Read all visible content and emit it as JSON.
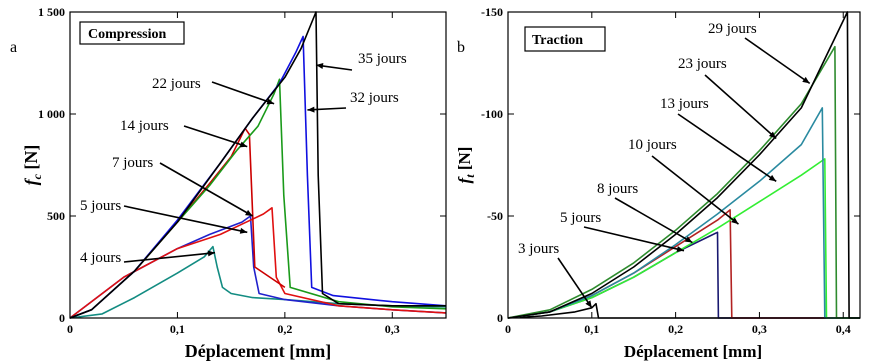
{
  "chart_data": [
    {
      "type": "line",
      "panel_letter": "a",
      "title": "Compression",
      "xlabel": "Déplacement [mm]",
      "ylabel": "f",
      "ylabel_sub": "c",
      "ylabel_unit": " [N]",
      "xlim": [
        0,
        0.35
      ],
      "ylim": [
        0,
        1500
      ],
      "x_ticks": [
        0,
        0.1,
        0.2,
        0.3
      ],
      "x_tick_labels": [
        "0",
        "0,1",
        "0,2",
        "0,3"
      ],
      "y_ticks": [
        0,
        500,
        1000,
        1500
      ],
      "y_tick_labels": [
        "0",
        "500",
        "1 000",
        "1 500"
      ],
      "series": [
        {
          "name": "4 jours",
          "color": "#138c82",
          "x": [
            0,
            0.03,
            0.06,
            0.1,
            0.125,
            0.133,
            0.137,
            0.142,
            0.15,
            0.17,
            0.2,
            0.25,
            0.3,
            0.35
          ],
          "y": [
            0,
            20,
            100,
            220,
            300,
            350,
            250,
            150,
            120,
            100,
            90,
            70,
            60,
            55
          ]
        },
        {
          "name": "5 jours",
          "color": "#2020cc",
          "x": [
            0,
            0.05,
            0.1,
            0.13,
            0.16,
            0.168,
            0.171,
            0.176,
            0.2,
            0.25,
            0.3,
            0.35
          ],
          "y": [
            0,
            200,
            340,
            410,
            470,
            500,
            250,
            120,
            90,
            60,
            40,
            25
          ]
        },
        {
          "name": "7 jours",
          "color": "#e01010",
          "x": [
            0,
            0.05,
            0.1,
            0.14,
            0.16,
            0.18,
            0.188,
            0.192,
            0.2,
            0.25,
            0.3,
            0.35
          ],
          "y": [
            0,
            200,
            340,
            410,
            460,
            510,
            540,
            200,
            120,
            60,
            40,
            25
          ]
        },
        {
          "name": "14 jours",
          "color": "#cc0000",
          "x": [
            0,
            0.02,
            0.06,
            0.1,
            0.13,
            0.15,
            0.163,
            0.167,
            0.172,
            0.2
          ],
          "y": [
            0,
            40,
            230,
            470,
            660,
            790,
            930,
            900,
            250,
            150
          ]
        },
        {
          "name": "22 jours",
          "color": "#1a9a1a",
          "x": [
            0,
            0.02,
            0.06,
            0.1,
            0.13,
            0.155,
            0.175,
            0.19,
            0.195,
            0.199,
            0.205,
            0.25,
            0.3,
            0.35
          ],
          "y": [
            0,
            40,
            230,
            470,
            650,
            820,
            940,
            1100,
            1170,
            600,
            150,
            80,
            55,
            45
          ]
        },
        {
          "name": "32 jours",
          "color": "#1010e0",
          "x": [
            0,
            0.02,
            0.06,
            0.1,
            0.14,
            0.17,
            0.195,
            0.21,
            0.217,
            0.221,
            0.225,
            0.245,
            0.3,
            0.35
          ],
          "y": [
            0,
            40,
            230,
            480,
            760,
            980,
            1150,
            1300,
            1380,
            700,
            150,
            110,
            80,
            60
          ]
        },
        {
          "name": "35 jours",
          "color": "#000000",
          "x": [
            0,
            0.02,
            0.06,
            0.1,
            0.14,
            0.17,
            0.2,
            0.215,
            0.229,
            0.231,
            0.235,
            0.25,
            0.3,
            0.35
          ],
          "y": [
            0,
            40,
            230,
            470,
            760,
            980,
            1180,
            1320,
            1500,
            700,
            120,
            70,
            60,
            60
          ]
        }
      ],
      "annotations": [
        {
          "text": "35 jours",
          "series": "35 jours"
        },
        {
          "text": "32 jours",
          "series": "32 jours"
        },
        {
          "text": "22 jours",
          "series": "22 jours"
        },
        {
          "text": "14 jours",
          "series": "14 jours"
        },
        {
          "text": "7 jours",
          "series": "7 jours"
        },
        {
          "text": "5 jours",
          "series": "5 jours"
        },
        {
          "text": "4 jours",
          "series": "4 jours"
        }
      ]
    },
    {
      "type": "line",
      "panel_letter": "b",
      "title": "Traction",
      "xlabel": "Déplacement [mm]",
      "ylabel": "f",
      "ylabel_sub": "t",
      "ylabel_unit": " [N]",
      "xlim": [
        0,
        0.42
      ],
      "ylim": [
        0,
        -150
      ],
      "x_ticks": [
        0,
        0.1,
        0.2,
        0.3,
        0.4
      ],
      "x_tick_labels": [
        "0",
        "0,1",
        "0,2",
        "0,3",
        "0,4"
      ],
      "y_ticks": [
        0,
        -50,
        -100,
        -150
      ],
      "y_tick_labels": [
        "0",
        "-50",
        "-100",
        "-150"
      ],
      "series": [
        {
          "name": "3 jours",
          "color": "#000000",
          "x": [
            0,
            0.04,
            0.08,
            0.1,
            0.105,
            0.108,
            0.2,
            0.3,
            0.42
          ],
          "y": [
            0,
            -1,
            -3,
            -5,
            -7,
            0,
            0,
            0,
            0
          ]
        },
        {
          "name": "5 jours",
          "color": "#191970",
          "x": [
            0,
            0.05,
            0.1,
            0.15,
            0.2,
            0.24,
            0.25,
            0.251,
            0.3,
            0.42
          ],
          "y": [
            0,
            -3,
            -10,
            -20,
            -32,
            -40,
            -42,
            0,
            0,
            0
          ]
        },
        {
          "name": "8 jours",
          "color": "#b22222",
          "x": [
            0,
            0.05,
            0.1,
            0.15,
            0.2,
            0.25,
            0.265,
            0.267,
            0.3,
            0.42
          ],
          "y": [
            0,
            -3,
            -11,
            -22,
            -35,
            -48,
            -53,
            0,
            0,
            0
          ]
        },
        {
          "name": "10 jours",
          "color": "#33ee33",
          "x": [
            0,
            0.05,
            0.1,
            0.15,
            0.2,
            0.25,
            0.3,
            0.35,
            0.378,
            0.38,
            0.4,
            0.42
          ],
          "y": [
            0,
            -3,
            -10,
            -20,
            -32,
            -44,
            -57,
            -70,
            -78,
            0,
            0,
            0
          ]
        },
        {
          "name": "13 jours",
          "color": "#2a8aa0",
          "x": [
            0,
            0.05,
            0.1,
            0.15,
            0.2,
            0.25,
            0.3,
            0.35,
            0.375,
            0.378,
            0.4,
            0.42
          ],
          "y": [
            0,
            -3,
            -11,
            -22,
            -36,
            -51,
            -67,
            -85,
            -103,
            0,
            0,
            0
          ]
        },
        {
          "name": "23 jours",
          "color": "#2e8b2e",
          "x": [
            0,
            0.05,
            0.1,
            0.15,
            0.2,
            0.25,
            0.3,
            0.35,
            0.39,
            0.392,
            0.4,
            0.42
          ],
          "y": [
            0,
            -4,
            -14,
            -27,
            -43,
            -61,
            -82,
            -105,
            -133,
            0,
            0,
            0
          ]
        },
        {
          "name": "29 jours",
          "color": "#000000",
          "x": [
            0,
            0.05,
            0.1,
            0.15,
            0.2,
            0.25,
            0.3,
            0.35,
            0.405,
            0.407,
            0.42
          ],
          "y": [
            0,
            -3,
            -12,
            -25,
            -41,
            -59,
            -80,
            -103,
            -150,
            0,
            0
          ]
        }
      ],
      "annotations": [
        {
          "text": "29 jours",
          "series": "29 jours"
        },
        {
          "text": "23 jours",
          "series": "23 jours"
        },
        {
          "text": "13 jours",
          "series": "13 jours"
        },
        {
          "text": "10 jours",
          "series": "10 jours"
        },
        {
          "text": "8 jours",
          "series": "8 jours"
        },
        {
          "text": "5 jours",
          "series": "5 jours"
        },
        {
          "text": "3 jours",
          "series": "3 jours"
        }
      ]
    }
  ]
}
